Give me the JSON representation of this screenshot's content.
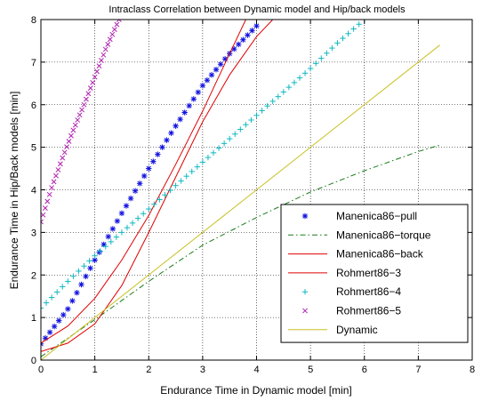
{
  "chart_data": {
    "type": "line",
    "title": "Intraclass Correlation between Dynamic model and Hip/back models",
    "xlabel": "Endurance Time in Dynamic model [min]",
    "ylabel": "Endurance Time in Hip/Back models [min]",
    "xlim": [
      0,
      8
    ],
    "ylim": [
      0,
      8
    ],
    "xticks": [
      "0",
      "1",
      "2",
      "3",
      "4",
      "5",
      "6",
      "7",
      "8"
    ],
    "yticks": [
      "0",
      "1",
      "2",
      "3",
      "4",
      "5",
      "6",
      "7",
      "8"
    ],
    "grid": true,
    "legend_position": "bottom-right",
    "series": [
      {
        "name": "Manenica86−pull",
        "style": "star-markers",
        "color": "#1010e0",
        "x": [
          0,
          0.5,
          1,
          1.5,
          2,
          2.5,
          3,
          3.5,
          4
        ],
        "y": [
          0.38,
          1.2,
          2.35,
          3.45,
          4.5,
          5.5,
          6.45,
          7.2,
          7.85
        ]
      },
      {
        "name": "Manenica86−torque",
        "style": "dash-dot-line",
        "color": "#1a7a1a",
        "x": [
          0,
          1,
          2,
          3,
          4,
          5,
          6,
          7,
          7.4
        ],
        "y": [
          0.08,
          0.95,
          1.85,
          2.7,
          3.35,
          3.95,
          4.45,
          4.9,
          5.05
        ]
      },
      {
        "name": "Manenica86−back",
        "style": "solid-line",
        "color": "#e00000",
        "x": [
          0,
          0.5,
          1,
          1.5,
          2,
          2.5,
          3,
          3.5,
          4,
          4.3
        ],
        "y": [
          0.2,
          0.4,
          0.85,
          1.75,
          3.0,
          4.3,
          5.6,
          6.7,
          7.6,
          8.0
        ]
      },
      {
        "name": "Rohmert86−3",
        "style": "solid-line",
        "color": "#e00000",
        "x": [
          0,
          0.5,
          1,
          1.5,
          2,
          2.5,
          3,
          3.5,
          3.8
        ],
        "y": [
          0.4,
          0.8,
          1.45,
          2.35,
          3.4,
          4.6,
          5.85,
          7.2,
          8.0
        ]
      },
      {
        "name": "Rohmert86−4",
        "style": "plus-markers",
        "color": "#10b8c0",
        "x": [
          0,
          0.5,
          1,
          1.5,
          2,
          2.5,
          3,
          3.5,
          4,
          4.5,
          5,
          5.5,
          6
        ],
        "y": [
          1.22,
          1.85,
          2.45,
          3.0,
          3.55,
          4.1,
          4.65,
          5.2,
          5.75,
          6.3,
          6.85,
          7.45,
          8.0
        ]
      },
      {
        "name": "Rohmert86−5",
        "style": "x-markers",
        "color": "#b020b0",
        "x": [
          0,
          0.2,
          0.4,
          0.6,
          0.8,
          1.0,
          1.2,
          1.45
        ],
        "y": [
          3.25,
          4.05,
          4.75,
          5.4,
          6.0,
          6.65,
          7.3,
          8.0
        ]
      },
      {
        "name": "Dynamic",
        "style": "solid-line",
        "color": "#c8c020",
        "x": [
          0,
          7.4
        ],
        "y": [
          0,
          7.4
        ]
      }
    ]
  }
}
